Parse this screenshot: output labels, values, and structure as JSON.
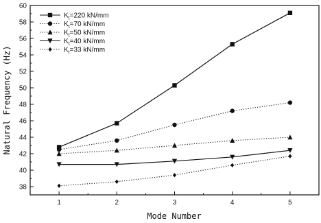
{
  "chart_data": {
    "type": "line",
    "title": "",
    "xlabel": "Mode Number",
    "ylabel": "Natural Frequency (Hz)",
    "x": [
      1,
      2,
      3,
      4,
      5
    ],
    "xlim": [
      0.5,
      5.5
    ],
    "ylim": [
      37,
      60
    ],
    "xticks": [
      1,
      2,
      3,
      4,
      5
    ],
    "yticks": [
      38,
      40,
      42,
      44,
      46,
      48,
      50,
      52,
      54,
      56,
      58,
      60
    ],
    "grid": false,
    "legend_position": "top-left",
    "series": [
      {
        "name_main": "K",
        "name_sub": "t",
        "name_rest": "=220 kN/mm",
        "marker": "square",
        "dash": "solid",
        "values": [
          42.8,
          45.7,
          50.3,
          55.3,
          59.1
        ]
      },
      {
        "name_main": "K",
        "name_sub": "t",
        "name_rest": "=70 kN/mm",
        "marker": "circle",
        "dash": "dotted",
        "values": [
          42.5,
          43.6,
          45.5,
          47.2,
          48.2
        ]
      },
      {
        "name_main": "K",
        "name_sub": "t",
        "name_rest": "=50 kN/mm",
        "marker": "triangle-up",
        "dash": "dotted",
        "values": [
          42.0,
          42.4,
          43.0,
          43.6,
          44.0
        ]
      },
      {
        "name_main": "K",
        "name_sub": "t",
        "name_rest": "=40 kN/mm",
        "marker": "triangle-down",
        "dash": "solid",
        "values": [
          40.7,
          40.7,
          41.1,
          41.6,
          42.4
        ]
      },
      {
        "name_main": "K",
        "name_sub": "t",
        "name_rest": "=33 kN/mm",
        "marker": "diamond",
        "dash": "dotted",
        "values": [
          38.1,
          38.6,
          39.4,
          40.6,
          41.7
        ]
      }
    ],
    "colors": {
      "line": "#111111",
      "background": "#ffffff"
    }
  }
}
